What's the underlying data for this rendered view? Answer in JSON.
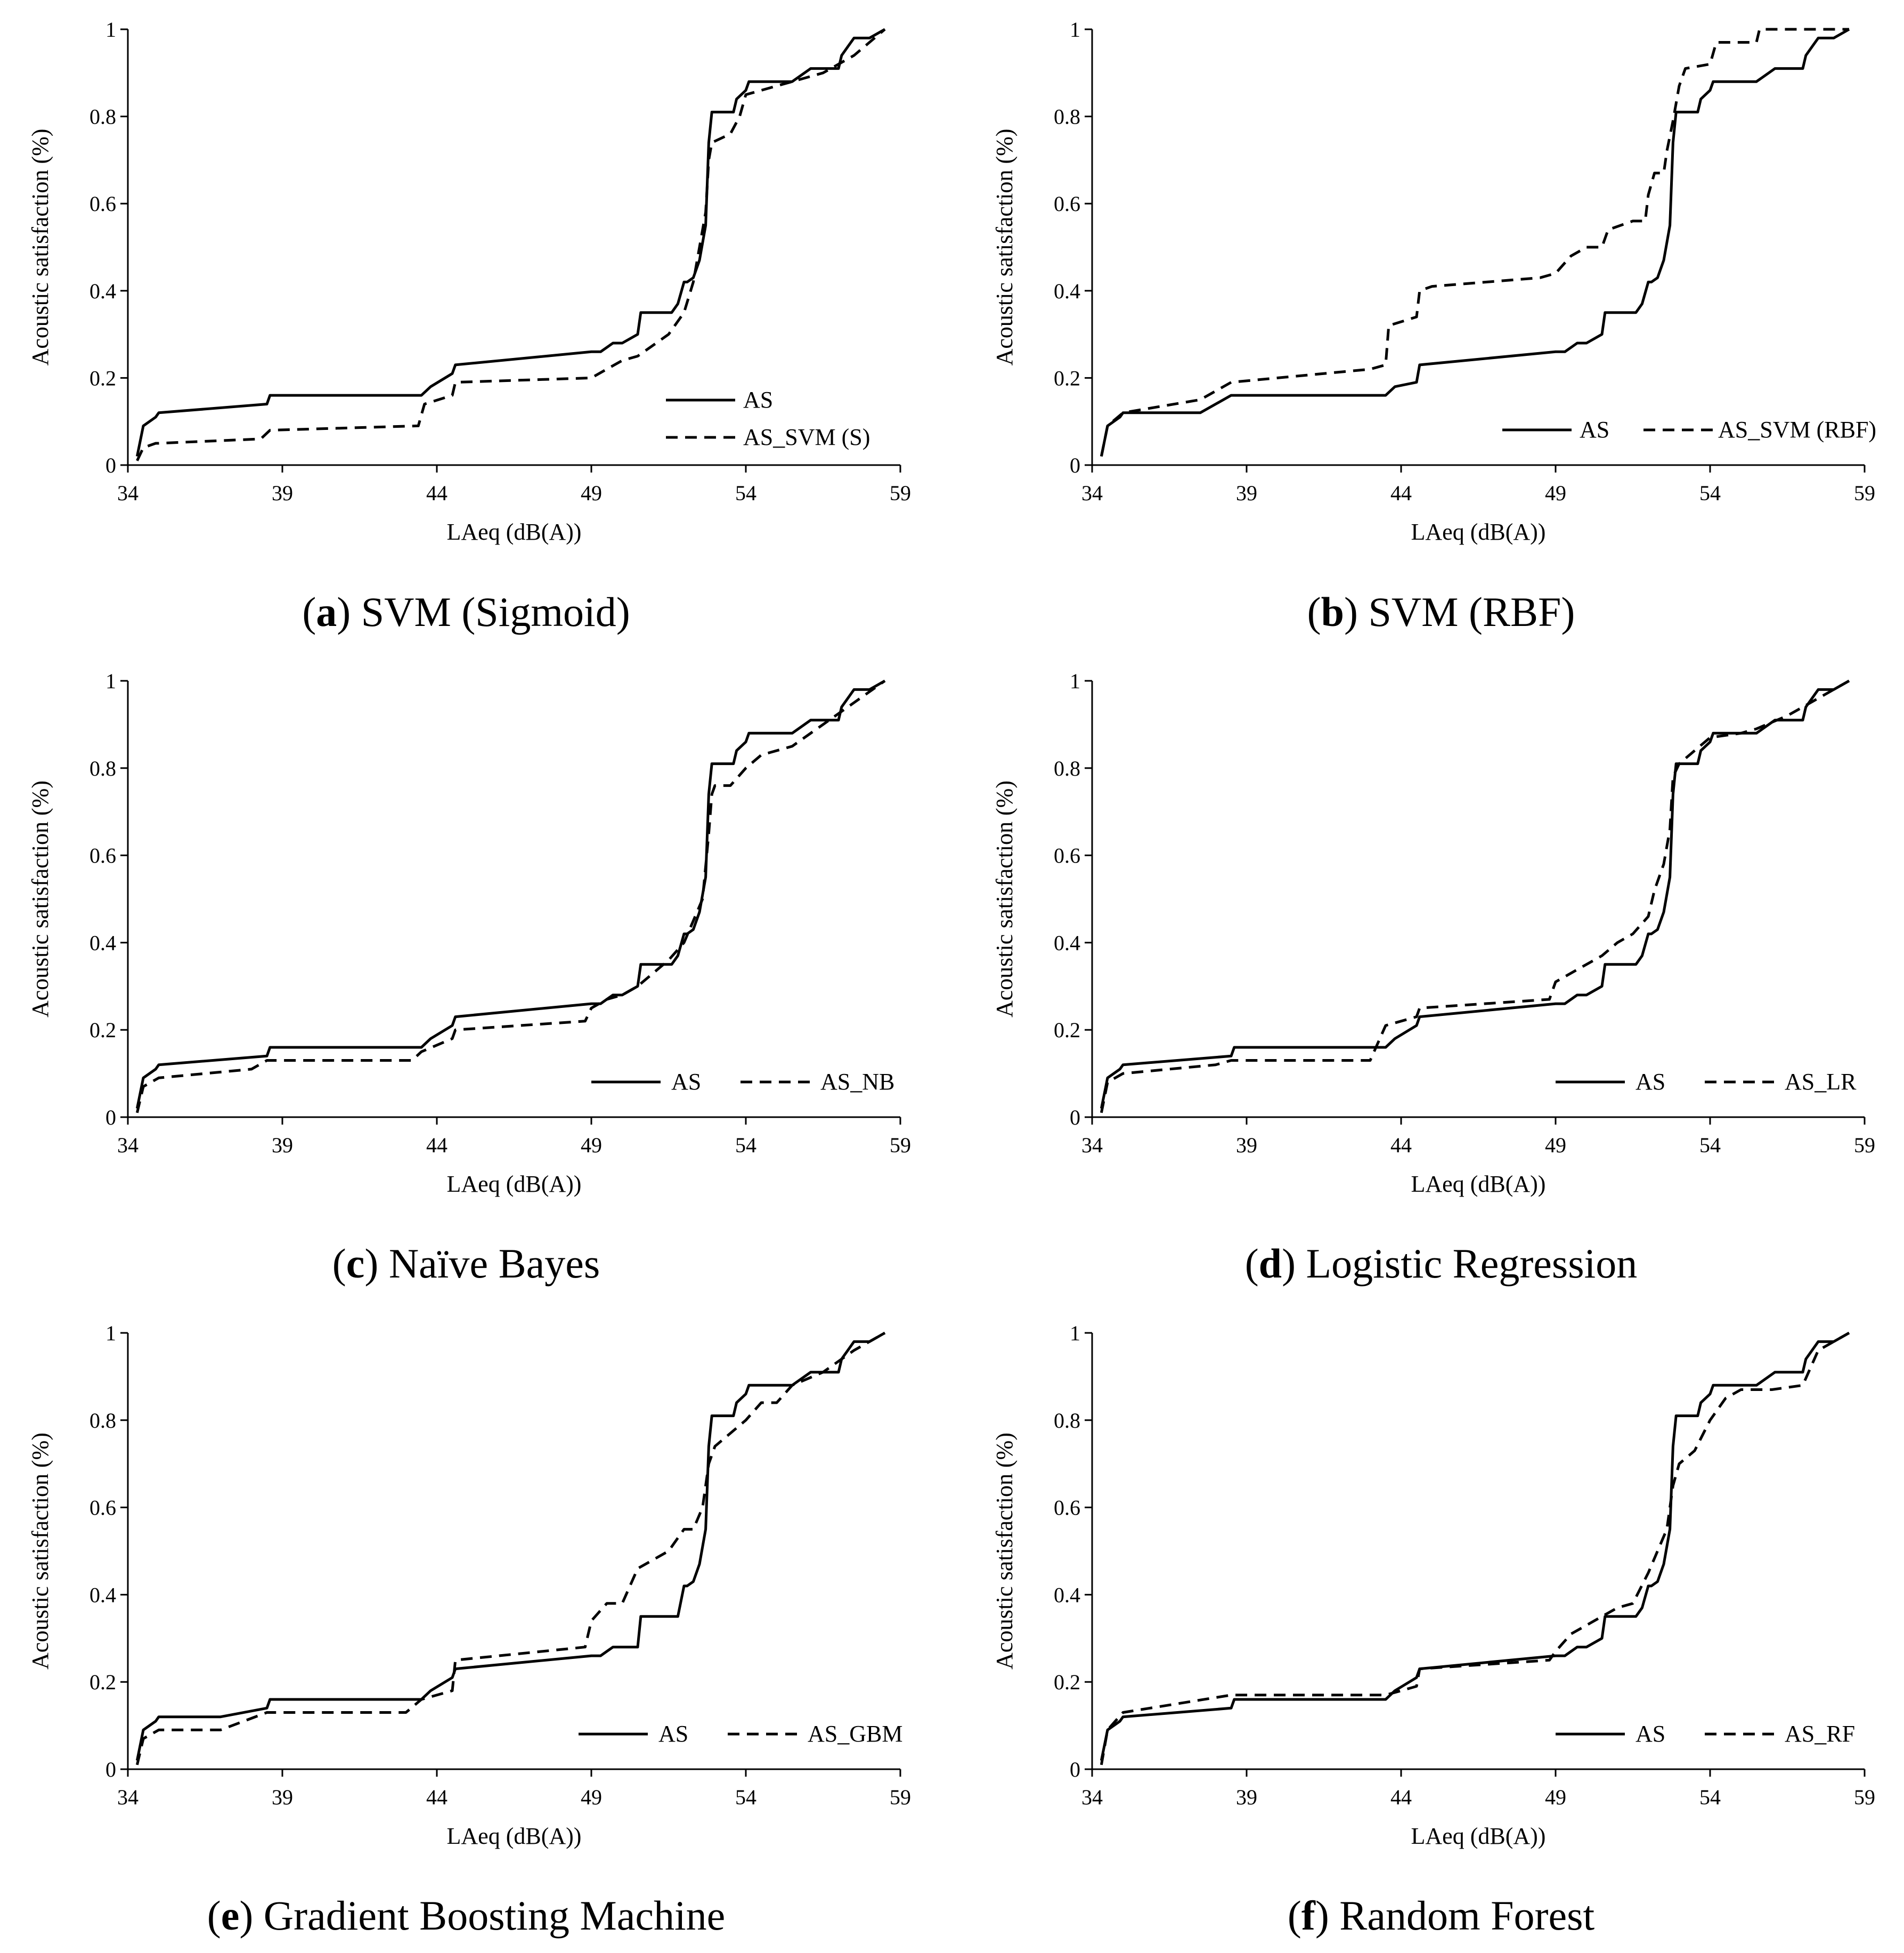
{
  "chart_data": [
    {
      "type": "line",
      "caption_letter": "a",
      "caption_text": "SVM (Sigmoid)",
      "xlabel": "LAeq (dB(A))",
      "ylabel": "Acoustic satisfaction (%)",
      "xlim": [
        34,
        59
      ],
      "ylim": [
        0,
        1
      ],
      "xticks": [
        "34",
        "39",
        "44",
        "49",
        "54",
        "59"
      ],
      "yticks": [
        "0",
        "0.2",
        "0.4",
        "0.6",
        "0.8",
        "1"
      ],
      "legend_position": "bottom-right-stacked",
      "series": [
        {
          "name": "AS",
          "style": "solid",
          "x": [
            34.3,
            34.5,
            34.9,
            35,
            38.5,
            38.6,
            43.5,
            43.8,
            44.5,
            44.6,
            49,
            49.3,
            49.7,
            50,
            50.5,
            50.6,
            51.6,
            51.8,
            52,
            52.1,
            52.3,
            52.5,
            52.6,
            52.7,
            52.8,
            52.9,
            53.6,
            53.7,
            54,
            54.1,
            55.5,
            56.1,
            57,
            57.1,
            57.3,
            57.5,
            58,
            58.5
          ],
          "y": [
            0.02,
            0.09,
            0.11,
            0.12,
            0.14,
            0.16,
            0.16,
            0.18,
            0.21,
            0.23,
            0.26,
            0.26,
            0.28,
            0.28,
            0.3,
            0.35,
            0.35,
            0.37,
            0.42,
            0.42,
            0.43,
            0.47,
            0.51,
            0.55,
            0.74,
            0.81,
            0.81,
            0.84,
            0.86,
            0.88,
            0.88,
            0.91,
            0.91,
            0.94,
            0.96,
            0.98,
            0.98,
            1.0
          ]
        },
        {
          "name": "AS_SVM (S)",
          "style": "dashed",
          "x": [
            34.3,
            34.5,
            34.9,
            35,
            38.3,
            38.6,
            43.4,
            43.6,
            44.5,
            44.6,
            49,
            49.5,
            50,
            50.5,
            51.5,
            52,
            52.3,
            52.5,
            52.7,
            52.8,
            52.9,
            53.5,
            53.8,
            54,
            55,
            55.5,
            56.5,
            57.5,
            58.5
          ],
          "y": [
            0.01,
            0.04,
            0.05,
            0.05,
            0.06,
            0.08,
            0.09,
            0.14,
            0.16,
            0.19,
            0.2,
            0.22,
            0.24,
            0.25,
            0.3,
            0.35,
            0.42,
            0.5,
            0.58,
            0.7,
            0.74,
            0.76,
            0.8,
            0.85,
            0.87,
            0.88,
            0.9,
            0.94,
            1.0
          ]
        }
      ]
    },
    {
      "type": "line",
      "caption_letter": "b",
      "caption_text": "SVM (RBF)",
      "xlabel": "LAeq (dB(A))",
      "ylabel": "Acoustic satisfaction (%)",
      "xlim": [
        34,
        59
      ],
      "ylim": [
        0,
        1
      ],
      "xticks": [
        "34",
        "39",
        "44",
        "49",
        "54",
        "59"
      ],
      "yticks": [
        "0",
        "0.2",
        "0.4",
        "0.6",
        "0.8",
        "1"
      ],
      "legend_position": "bottom-right-inline",
      "series": [
        {
          "name": "AS",
          "style": "solid",
          "x": [
            34.3,
            34.5,
            34.9,
            35,
            37.5,
            38.5,
            38.6,
            43.5,
            43.8,
            44.5,
            44.6,
            49,
            49.3,
            49.7,
            50,
            50.5,
            50.6,
            51.6,
            51.8,
            52,
            52.1,
            52.3,
            52.5,
            52.6,
            52.7,
            52.8,
            52.9,
            53.6,
            53.7,
            54,
            54.1,
            55.5,
            56.1,
            57,
            57.1,
            57.3,
            57.5,
            58,
            58.5
          ],
          "y": [
            0.02,
            0.09,
            0.11,
            0.12,
            0.12,
            0.16,
            0.16,
            0.16,
            0.18,
            0.19,
            0.23,
            0.26,
            0.26,
            0.28,
            0.28,
            0.3,
            0.35,
            0.35,
            0.37,
            0.42,
            0.42,
            0.43,
            0.47,
            0.51,
            0.55,
            0.74,
            0.81,
            0.81,
            0.84,
            0.86,
            0.88,
            0.88,
            0.91,
            0.91,
            0.94,
            0.96,
            0.98,
            0.98,
            1.0
          ]
        },
        {
          "name": "AS_SVM (RBF)",
          "style": "dashed",
          "x": [
            34.3,
            34.5,
            35,
            37.5,
            38.5,
            43,
            43.5,
            43.6,
            44.5,
            44.6,
            45,
            48.5,
            49,
            49.5,
            50,
            50.5,
            50.7,
            51.5,
            51.9,
            52,
            52.2,
            52.5,
            52.6,
            52.8,
            53,
            53.2,
            54,
            54.2,
            55.5,
            55.6,
            57.5,
            58.5
          ],
          "y": [
            0.02,
            0.09,
            0.12,
            0.15,
            0.19,
            0.22,
            0.23,
            0.32,
            0.34,
            0.4,
            0.41,
            0.43,
            0.44,
            0.48,
            0.5,
            0.5,
            0.54,
            0.56,
            0.56,
            0.62,
            0.67,
            0.67,
            0.72,
            0.79,
            0.87,
            0.91,
            0.92,
            0.97,
            0.97,
            1.0,
            1.0,
            1.0
          ]
        }
      ]
    },
    {
      "type": "line",
      "caption_letter": "c",
      "caption_text": "Naïve Bayes",
      "xlabel": "LAeq (dB(A))",
      "ylabel": "Acoustic satisfaction (%)",
      "xlim": [
        34,
        59
      ],
      "ylim": [
        0,
        1
      ],
      "xticks": [
        "34",
        "39",
        "44",
        "49",
        "54",
        "59"
      ],
      "yticks": [
        "0",
        "0.2",
        "0.4",
        "0.6",
        "0.8",
        "1"
      ],
      "legend_position": "bottom-right-inline",
      "series": [
        {
          "name": "AS",
          "style": "solid",
          "x": [
            34.3,
            34.5,
            34.9,
            35,
            38.5,
            38.6,
            43.5,
            43.8,
            44.5,
            44.6,
            49,
            49.3,
            49.7,
            50,
            50.5,
            50.6,
            51.6,
            51.8,
            52,
            52.1,
            52.3,
            52.5,
            52.6,
            52.7,
            52.8,
            52.9,
            53.6,
            53.7,
            54,
            54.1,
            55.5,
            56.1,
            57,
            57.1,
            57.3,
            57.5,
            58,
            58.5
          ],
          "y": [
            0.02,
            0.09,
            0.11,
            0.12,
            0.14,
            0.16,
            0.16,
            0.18,
            0.21,
            0.23,
            0.26,
            0.26,
            0.28,
            0.28,
            0.3,
            0.35,
            0.35,
            0.37,
            0.42,
            0.42,
            0.43,
            0.47,
            0.51,
            0.55,
            0.74,
            0.81,
            0.81,
            0.84,
            0.86,
            0.88,
            0.88,
            0.91,
            0.91,
            0.94,
            0.96,
            0.98,
            0.98,
            1.0
          ]
        },
        {
          "name": "AS_NB",
          "style": "dashed",
          "x": [
            34.3,
            34.5,
            35,
            38,
            38.5,
            43.2,
            43.5,
            44.5,
            44.6,
            48.8,
            49,
            49.5,
            50,
            50.5,
            51,
            51.5,
            52,
            52.3,
            52.6,
            52.8,
            52.9,
            53,
            53.5,
            54,
            54.5,
            55.5,
            56.5,
            57.5,
            58.5
          ],
          "y": [
            0.01,
            0.07,
            0.09,
            0.11,
            0.13,
            0.13,
            0.15,
            0.18,
            0.2,
            0.22,
            0.25,
            0.27,
            0.28,
            0.3,
            0.33,
            0.36,
            0.4,
            0.45,
            0.5,
            0.65,
            0.74,
            0.76,
            0.76,
            0.8,
            0.83,
            0.85,
            0.9,
            0.95,
            1.0
          ]
        }
      ]
    },
    {
      "type": "line",
      "caption_letter": "d",
      "caption_text": "Logistic Regression",
      "xlabel": "LAeq (dB(A))",
      "ylabel": "Acoustic satisfaction (%)",
      "xlim": [
        34,
        59
      ],
      "ylim": [
        0,
        1
      ],
      "xticks": [
        "34",
        "39",
        "44",
        "49",
        "54",
        "59"
      ],
      "yticks": [
        "0",
        "0.2",
        "0.4",
        "0.6",
        "0.8",
        "1"
      ],
      "legend_position": "bottom-right-inline",
      "series": [
        {
          "name": "AS",
          "style": "solid",
          "x": [
            34.3,
            34.5,
            34.9,
            35,
            38.5,
            38.6,
            43.5,
            43.8,
            44.5,
            44.6,
            49,
            49.3,
            49.7,
            50,
            50.5,
            50.6,
            51.6,
            51.8,
            52,
            52.1,
            52.3,
            52.5,
            52.6,
            52.7,
            52.8,
            52.9,
            53.6,
            53.7,
            54,
            54.1,
            55.5,
            56.1,
            57,
            57.1,
            57.3,
            57.5,
            58,
            58.5
          ],
          "y": [
            0.02,
            0.09,
            0.11,
            0.12,
            0.14,
            0.16,
            0.16,
            0.18,
            0.21,
            0.23,
            0.26,
            0.26,
            0.28,
            0.28,
            0.3,
            0.35,
            0.35,
            0.37,
            0.42,
            0.42,
            0.43,
            0.47,
            0.51,
            0.55,
            0.74,
            0.81,
            0.81,
            0.84,
            0.86,
            0.88,
            0.88,
            0.91,
            0.91,
            0.94,
            0.96,
            0.98,
            0.98,
            1.0
          ]
        },
        {
          "name": "AS_LR",
          "style": "dashed",
          "x": [
            34.3,
            34.5,
            35,
            38,
            38.5,
            43,
            43.5,
            44.5,
            44.6,
            48.8,
            49,
            49.5,
            50,
            50.5,
            51,
            51.5,
            52,
            52.2,
            52.5,
            52.7,
            52.8,
            53,
            53.5,
            54,
            55,
            55.5,
            56.5,
            57.5,
            58.5
          ],
          "y": [
            0.01,
            0.08,
            0.1,
            0.12,
            0.13,
            0.13,
            0.21,
            0.23,
            0.25,
            0.27,
            0.31,
            0.33,
            0.35,
            0.37,
            0.4,
            0.42,
            0.46,
            0.52,
            0.58,
            0.66,
            0.78,
            0.81,
            0.84,
            0.87,
            0.88,
            0.89,
            0.92,
            0.96,
            1.0
          ]
        }
      ]
    },
    {
      "type": "line",
      "caption_letter": "e",
      "caption_text": "Gradient Boosting Machine",
      "xlabel": "LAeq (dB(A))",
      "ylabel": "Acoustic satisfaction (%)",
      "xlim": [
        34,
        59
      ],
      "ylim": [
        0,
        1
      ],
      "xticks": [
        "34",
        "39",
        "44",
        "49",
        "54",
        "59"
      ],
      "yticks": [
        "0",
        "0.2",
        "0.4",
        "0.6",
        "0.8",
        "1"
      ],
      "legend_position": "bottom-right-inline",
      "series": [
        {
          "name": "AS",
          "style": "solid",
          "x": [
            34.3,
            34.5,
            34.9,
            35,
            37,
            38.5,
            38.6,
            43.5,
            43.8,
            44.5,
            44.6,
            49,
            49.3,
            49.7,
            50,
            50.5,
            50.6,
            51.6,
            51.8,
            52,
            52.1,
            52.3,
            52.5,
            52.6,
            52.7,
            52.8,
            52.9,
            53.6,
            53.7,
            54,
            54.1,
            55.5,
            56.1,
            57,
            57.1,
            57.3,
            57.5,
            58,
            58.5
          ],
          "y": [
            0.02,
            0.09,
            0.11,
            0.12,
            0.12,
            0.14,
            0.16,
            0.16,
            0.18,
            0.21,
            0.23,
            0.26,
            0.26,
            0.28,
            0.28,
            0.28,
            0.35,
            0.35,
            0.35,
            0.42,
            0.42,
            0.43,
            0.47,
            0.51,
            0.55,
            0.74,
            0.81,
            0.81,
            0.84,
            0.86,
            0.88,
            0.88,
            0.91,
            0.91,
            0.94,
            0.96,
            0.98,
            0.98,
            1.0
          ]
        },
        {
          "name": "AS_GBM",
          "style": "dashed",
          "x": [
            34.3,
            34.5,
            35,
            37,
            38.5,
            43,
            43.5,
            44.5,
            44.6,
            48.8,
            49,
            49.5,
            50,
            50.5,
            51,
            51.5,
            52,
            52.3,
            52.6,
            52.8,
            53,
            53.5,
            54,
            54.5,
            55,
            55.5,
            56.5,
            57.5,
            58.5
          ],
          "y": [
            0.01,
            0.07,
            0.09,
            0.09,
            0.13,
            0.13,
            0.16,
            0.18,
            0.25,
            0.28,
            0.34,
            0.38,
            0.38,
            0.46,
            0.48,
            0.5,
            0.55,
            0.55,
            0.6,
            0.7,
            0.74,
            0.77,
            0.8,
            0.84,
            0.84,
            0.88,
            0.91,
            0.96,
            1.0
          ]
        }
      ]
    },
    {
      "type": "line",
      "caption_letter": "f",
      "caption_text": "Random Forest",
      "xlabel": "LAeq (dB(A))",
      "ylabel": "Acoustic satisfaction (%)",
      "xlim": [
        34,
        59
      ],
      "ylim": [
        0,
        1
      ],
      "xticks": [
        "34",
        "39",
        "44",
        "49",
        "54",
        "59"
      ],
      "yticks": [
        "0",
        "0.2",
        "0.4",
        "0.6",
        "0.8",
        "1"
      ],
      "legend_position": "bottom-right-inline",
      "series": [
        {
          "name": "AS",
          "style": "solid",
          "x": [
            34.3,
            34.5,
            34.9,
            35,
            38.5,
            38.6,
            43.5,
            43.8,
            44.5,
            44.6,
            49,
            49.3,
            49.7,
            50,
            50.5,
            50.6,
            51.6,
            51.8,
            52,
            52.1,
            52.3,
            52.5,
            52.6,
            52.7,
            52.8,
            52.9,
            53.6,
            53.7,
            54,
            54.1,
            55.5,
            56.1,
            57,
            57.1,
            57.3,
            57.5,
            58,
            58.5
          ],
          "y": [
            0.02,
            0.09,
            0.11,
            0.12,
            0.14,
            0.16,
            0.16,
            0.18,
            0.21,
            0.23,
            0.26,
            0.26,
            0.28,
            0.28,
            0.3,
            0.35,
            0.35,
            0.37,
            0.42,
            0.42,
            0.43,
            0.47,
            0.51,
            0.55,
            0.74,
            0.81,
            0.81,
            0.84,
            0.86,
            0.88,
            0.88,
            0.91,
            0.91,
            0.94,
            0.96,
            0.98,
            0.98,
            1.0
          ]
        },
        {
          "name": "AS_RF",
          "style": "dashed",
          "x": [
            34.3,
            34.5,
            35,
            38.5,
            43.5,
            44.5,
            44.6,
            48.8,
            49,
            49.5,
            50,
            50.5,
            51,
            51.5,
            52,
            52.3,
            52.6,
            52.8,
            53,
            53.5,
            54,
            54.5,
            55,
            56,
            57,
            57.5,
            58.5
          ],
          "y": [
            0.01,
            0.09,
            0.13,
            0.17,
            0.17,
            0.19,
            0.23,
            0.25,
            0.27,
            0.31,
            0.33,
            0.35,
            0.37,
            0.38,
            0.45,
            0.5,
            0.55,
            0.65,
            0.7,
            0.73,
            0.8,
            0.85,
            0.87,
            0.87,
            0.88,
            0.96,
            1.0
          ]
        }
      ]
    }
  ]
}
